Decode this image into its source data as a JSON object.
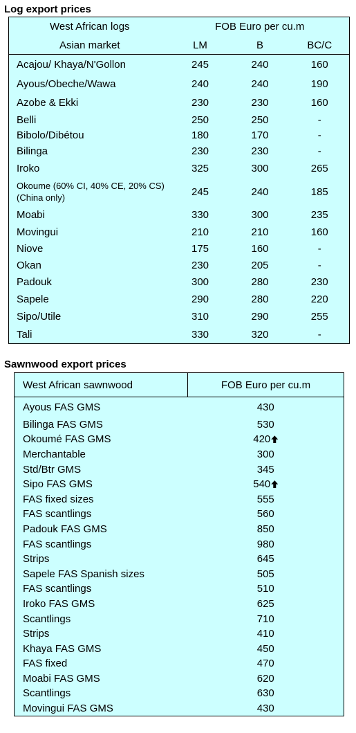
{
  "log": {
    "title": "Log export prices",
    "header": [
      "West African logs",
      "FOB Euro per cu.m"
    ],
    "subheader": [
      "Asian market",
      "LM",
      "B",
      "BC/C"
    ],
    "rows": [
      [
        "Acajou/ Khaya/N'Gollon",
        "245",
        "240",
        "160"
      ],
      [
        "Ayous/Obeche/Wawa",
        "240",
        "240",
        "190"
      ],
      [
        "Azobe & Ekki",
        "230",
        "230",
        "160"
      ],
      [
        "Belli",
        "250",
        "250",
        "-"
      ],
      [
        "Bibolo/Dibétou",
        "180",
        "170",
        "-"
      ],
      [
        "Bilinga",
        "230",
        "230",
        "-"
      ],
      [
        "Iroko",
        "325",
        "300",
        "265"
      ],
      [
        "Okoume (60% CI, 40% CE, 20% CS) (China only)",
        "245",
        "240",
        "185"
      ],
      [
        "Moabi",
        "330",
        "300",
        "235"
      ],
      [
        "Movingui",
        "210",
        "210",
        "160"
      ],
      [
        "Niove",
        "175",
        "160",
        "-"
      ],
      [
        "Okan",
        "230",
        "205",
        "-"
      ],
      [
        "Padouk",
        "300",
        "280",
        "230"
      ],
      [
        "Sapele",
        "290",
        "280",
        "220"
      ],
      [
        "Sipo/Utile",
        "310",
        "290",
        "255"
      ],
      [
        "Tali",
        "330",
        "320",
        "-"
      ]
    ]
  },
  "sawnwood": {
    "title": "Sawnwood export prices",
    "header": [
      "West African sawnwood",
      "FOB Euro per cu.m"
    ],
    "rows": [
      [
        "Ayous FAS GMS",
        "430"
      ],
      [
        "Bilinga FAS GMS",
        "530"
      ],
      [
        "Okoumé FAS GMS",
        "420"
      ],
      [
        "Merchantable",
        "300"
      ],
      [
        "Std/Btr GMS",
        "345"
      ],
      [
        "Sipo FAS GMS",
        "540"
      ],
      [
        "FAS fixed sizes",
        "555"
      ],
      [
        "FAS scantlings",
        "560"
      ],
      [
        "Padouk FAS GMS",
        "850"
      ],
      [
        "FAS scantlings",
        "980"
      ],
      [
        "Strips",
        "645"
      ],
      [
        "Sapele FAS Spanish sizes",
        "505"
      ],
      [
        "FAS scantlings",
        "510"
      ],
      [
        "Iroko FAS GMS",
        "625"
      ],
      [
        "Scantlings",
        "710"
      ],
      [
        "Strips",
        "410"
      ],
      [
        "Khaya FAS GMS",
        "450"
      ],
      [
        "FAS fixed",
        "470"
      ],
      [
        "Moabi FAS GMS",
        "620"
      ],
      [
        "Scantlings",
        "630"
      ],
      [
        "Movingui FAS GMS",
        "430"
      ]
    ]
  }
}
